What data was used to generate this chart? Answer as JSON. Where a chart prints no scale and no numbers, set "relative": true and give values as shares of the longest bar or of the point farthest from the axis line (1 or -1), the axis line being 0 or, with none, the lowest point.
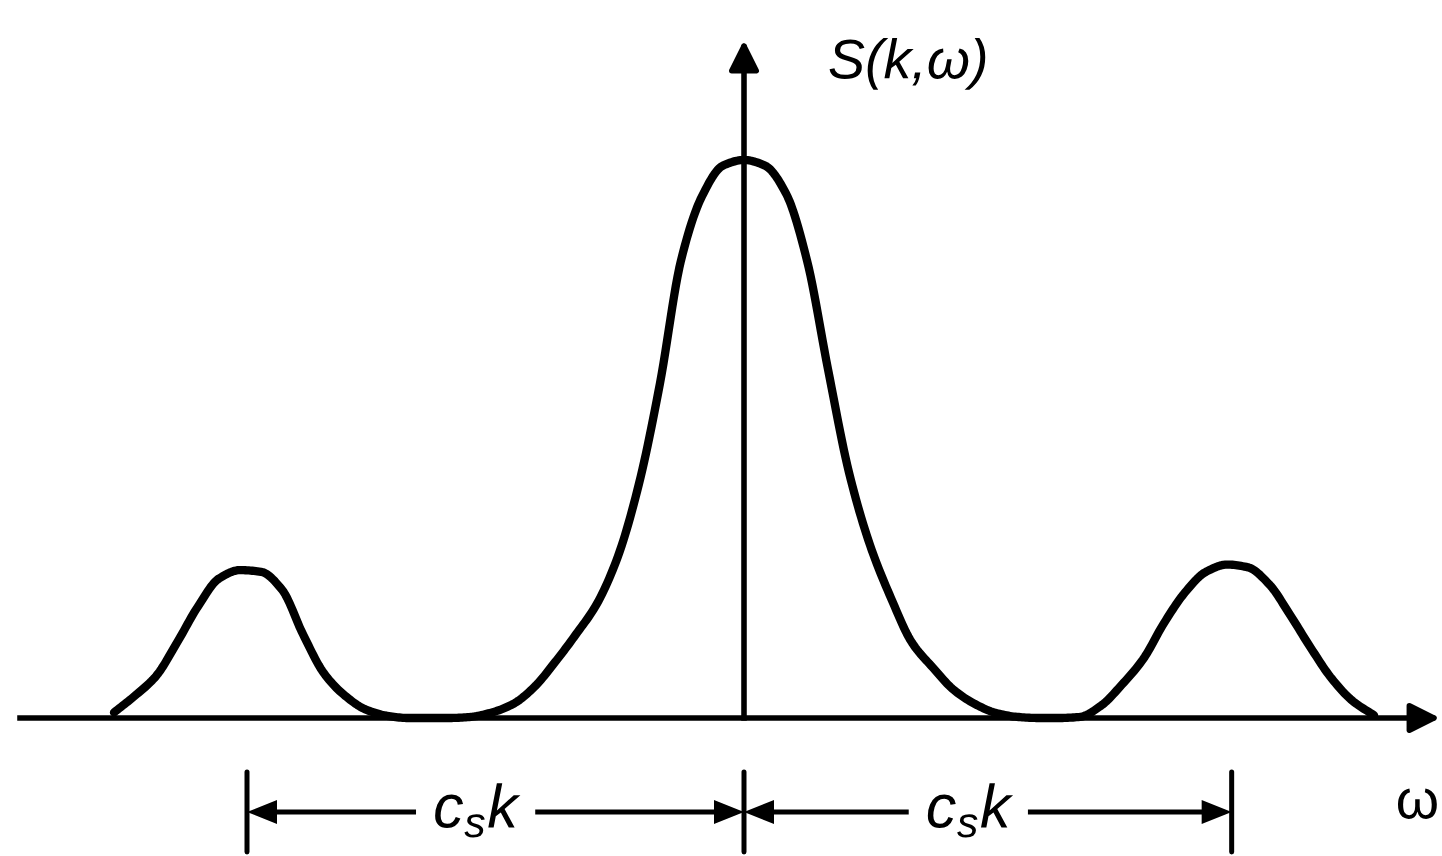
{
  "chart_data": {
    "type": "line",
    "relative": true,
    "xlabel": "ω",
    "ylabel": "S(k,ω)",
    "categories": [
      null,
      null,
      null,
      null,
      null,
      null,
      null,
      null,
      null,
      null,
      null,
      null,
      null,
      null,
      null,
      null,
      null,
      null,
      null,
      null,
      null,
      null,
      null,
      null,
      null,
      null,
      null,
      null,
      null,
      null,
      null,
      null,
      null,
      null,
      null,
      null,
      null,
      null,
      null,
      null,
      null,
      null,
      null,
      null,
      null,
      null,
      null,
      null,
      null,
      null,
      null,
      null,
      null,
      null,
      null,
      null,
      null,
      null,
      null,
      null,
      null
    ],
    "series": [
      {
        "color": "#000000",
        "values": [
          0.01,
          0.04,
          0.075,
          0.135,
          0.2,
          0.25,
          0.265,
          0.262,
          0.23,
          0.15,
          0.08,
          0.04,
          0.015,
          0.004,
          0,
          0,
          0,
          0.002,
          0.01,
          0.025,
          0.055,
          0.1,
          0.15,
          0.205,
          0.29,
          0.42,
          0.6,
          0.82,
          0.935,
          0.99,
          1.0,
          0.99,
          0.94,
          0.82,
          0.625,
          0.44,
          0.31,
          0.215,
          0.135,
          0.09,
          0.05,
          0.025,
          0.009,
          0.002,
          0,
          0,
          0.002,
          0.022,
          0.06,
          0.105,
          0.17,
          0.225,
          0.262,
          0.275,
          0.27,
          0.24,
          0.185,
          0.125,
          0.07,
          0.03,
          0.005
        ]
      }
    ],
    "annotations": [
      "c$_{s}$k",
      "c$_{s}$k"
    ]
  }
}
